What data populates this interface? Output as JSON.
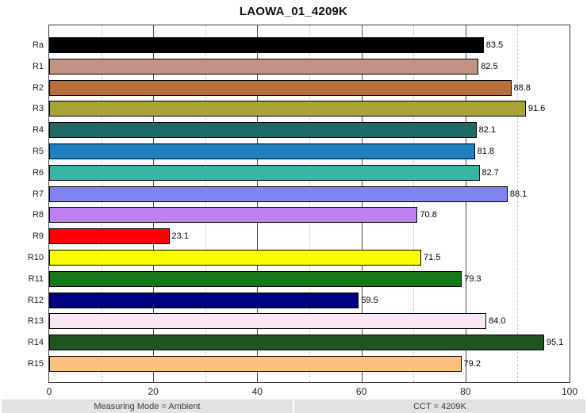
{
  "title": "LAOWA_01_4209K",
  "chart_data": {
    "type": "bar",
    "orientation": "horizontal",
    "title": "LAOWA_01_4209K",
    "categories": [
      "Ra",
      "R1",
      "R2",
      "R3",
      "R4",
      "R5",
      "R6",
      "R7",
      "R8",
      "R9",
      "R10",
      "R11",
      "R12",
      "R13",
      "R14",
      "R15"
    ],
    "values": [
      83.5,
      82.5,
      88.8,
      91.6,
      82.1,
      81.8,
      82.7,
      88.1,
      70.8,
      23.1,
      71.5,
      79.3,
      59.5,
      84.0,
      95.1,
      79.2
    ],
    "value_labels": [
      "83.5",
      "82.5",
      "88.8",
      "91.6",
      "82.1",
      "81.8",
      "82.7",
      "88.1",
      "70.8",
      "23.1",
      "71.5",
      "79.3",
      "59.5",
      "84.0",
      "95.1",
      "79.2"
    ],
    "bar_colors": [
      "#000000",
      "#C29384",
      "#B96F3B",
      "#A8A335",
      "#1C6B66",
      "#1F80C0",
      "#39B5A4",
      "#8183EE",
      "#BD7FF2",
      "#FE0000",
      "#FCFC00",
      "#187818",
      "#000080",
      "#FAE9F4",
      "#1E5420",
      "#FBC183"
    ],
    "xlabel": "",
    "ylabel": "",
    "xlim": [
      0,
      100
    ],
    "x_ticks": [
      0,
      20,
      40,
      60,
      80,
      100
    ],
    "x_minor_ticks": [
      10,
      30,
      50,
      70,
      90
    ],
    "grid": true,
    "legend": false
  },
  "footer": {
    "left": "Measuring Mode = Ambient",
    "right": "CCT = 4209K"
  },
  "colors": {
    "frame": "#3c3c3c",
    "major_grid": "#4d4d4d",
    "minor_grid": "#c9c9c9",
    "footer_bg": "#e3e3e3",
    "bar_border": "#000000"
  }
}
